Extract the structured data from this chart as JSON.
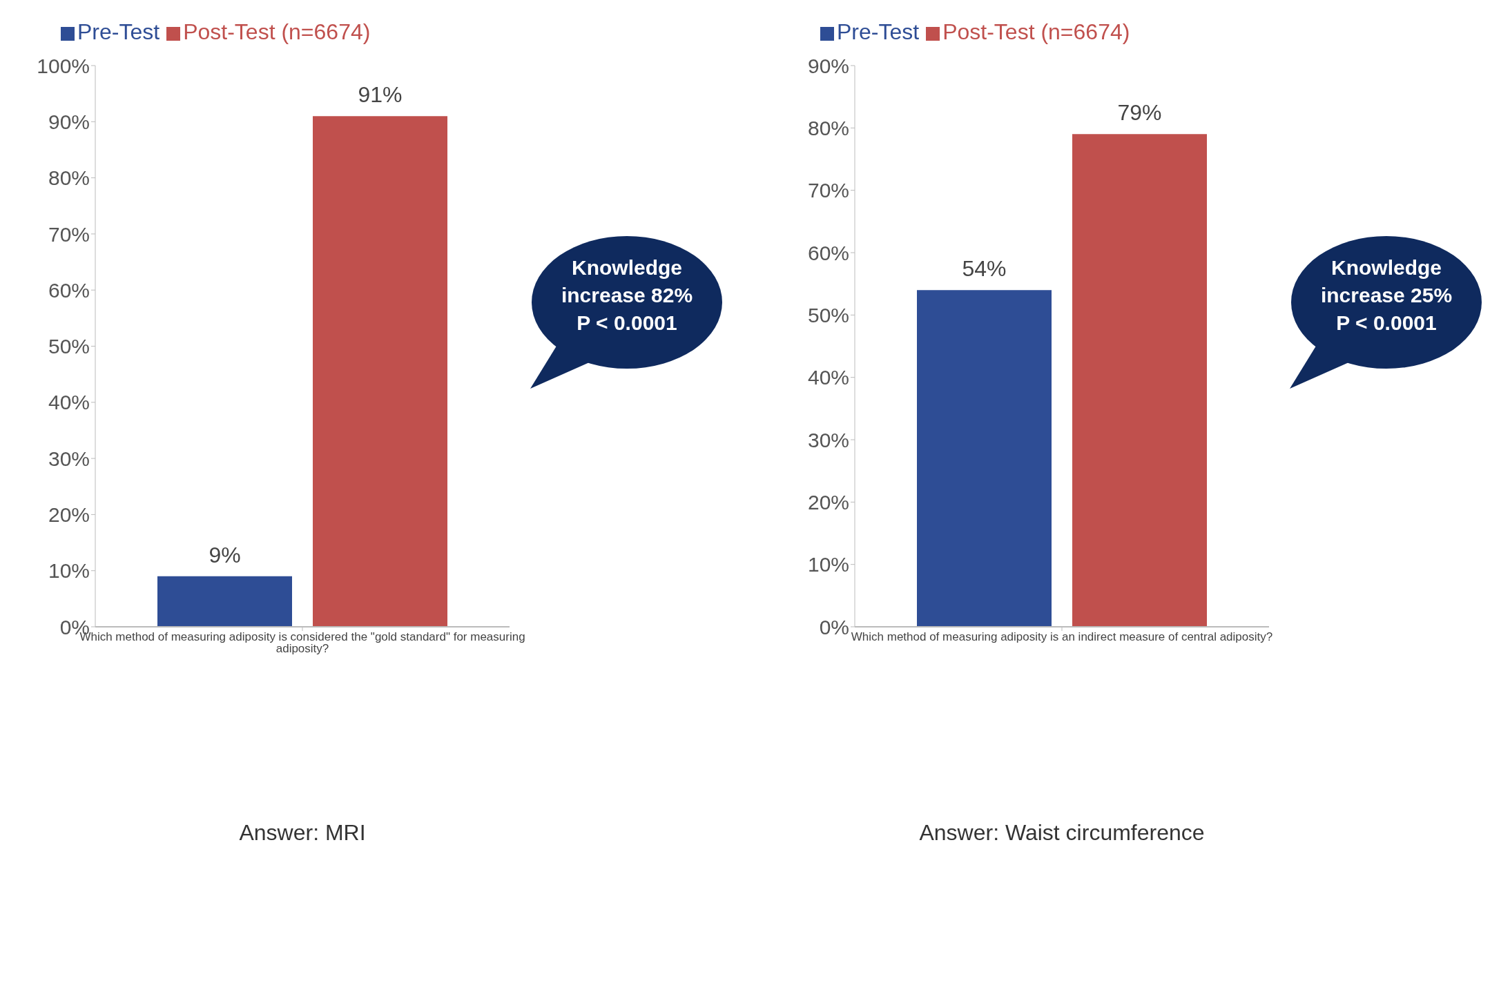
{
  "chart_data": [
    {
      "type": "bar",
      "categories": [
        "Which method of measuring adiposity is considered the \"gold standard\" for measuring adiposity?"
      ],
      "series": [
        {
          "name": "Pre-Test",
          "color": "#2e4d95",
          "values": [
            9
          ],
          "value_labels": [
            "9%"
          ]
        },
        {
          "name": "Post-Test (n=6674)",
          "color": "#c0504d",
          "values": [
            91
          ],
          "value_labels": [
            "91%"
          ]
        }
      ],
      "ylim": [
        0,
        100
      ],
      "yticks": [
        {
          "value": 0,
          "label": "0%"
        },
        {
          "value": 10,
          "label": "10%"
        },
        {
          "value": 20,
          "label": "20%"
        },
        {
          "value": 30,
          "label": "30%"
        },
        {
          "value": 40,
          "label": "40%"
        },
        {
          "value": 50,
          "label": "50%"
        },
        {
          "value": 60,
          "label": "60%"
        },
        {
          "value": 70,
          "label": "70%"
        },
        {
          "value": 80,
          "label": "80%"
        },
        {
          "value": 90,
          "label": "90%"
        },
        {
          "value": 100,
          "label": "100%"
        }
      ],
      "legend": "top left",
      "grid": false,
      "annotations": [
        "Knowledge increase 82% P < 0.0001",
        "Answer: MRI"
      ]
    },
    {
      "type": "bar",
      "categories": [
        "Which method of measuring adiposity is an indirect measure of central adiposity?"
      ],
      "series": [
        {
          "name": "Pre-Test",
          "color": "#2e4d95",
          "values": [
            54
          ],
          "value_labels": [
            "54%"
          ]
        },
        {
          "name": "Post-Test (n=6674)",
          "color": "#c0504d",
          "values": [
            79
          ],
          "value_labels": [
            "79%"
          ]
        }
      ],
      "ylim": [
        0,
        90
      ],
      "yticks": [
        {
          "value": 0,
          "label": "0%"
        },
        {
          "value": 10,
          "label": "10%"
        },
        {
          "value": 20,
          "label": "20%"
        },
        {
          "value": 30,
          "label": "30%"
        },
        {
          "value": 40,
          "label": "40%"
        },
        {
          "value": 50,
          "label": "50%"
        },
        {
          "value": 60,
          "label": "60%"
        },
        {
          "value": 70,
          "label": "70%"
        },
        {
          "value": 80,
          "label": "80%"
        },
        {
          "value": 90,
          "label": "90%"
        }
      ],
      "legend": "top left",
      "grid": false,
      "annotations": [
        "Knowledge increase 25% P < 0.0001",
        "Answer: Waist circumference"
      ]
    }
  ]
}
